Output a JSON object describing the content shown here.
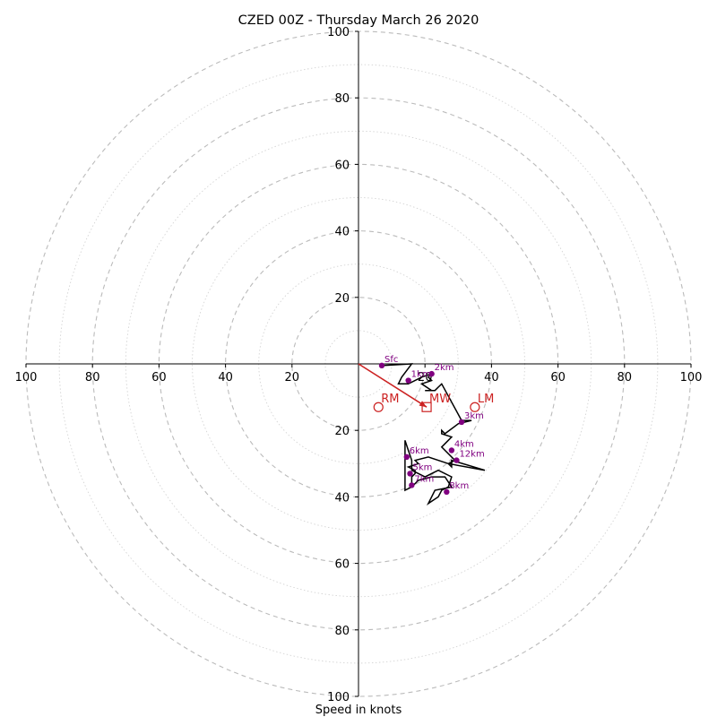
{
  "chart_data": {
    "type": "hodograph",
    "title": "CZED 00Z - Thursday March 26 2020",
    "xlabel": "Speed in knots",
    "ylabel": "",
    "range_knots": [
      -100,
      100
    ],
    "major_ring_step": 20,
    "minor_ring_step": 10,
    "grid": true,
    "tick_labels": [
      "20",
      "40",
      "60",
      "80",
      "100"
    ],
    "colors": {
      "hodograph": "#000000",
      "markers": "#800080",
      "storm_motion": "#cc2222",
      "grid": "#bbbbbb",
      "axes": "#000000"
    },
    "hodograph": {
      "u": [
        7,
        16,
        13,
        12,
        15,
        19,
        22,
        21,
        22,
        19,
        22,
        20,
        23,
        24,
        25,
        31,
        34,
        30,
        26,
        25,
        25,
        28,
        27,
        25,
        29,
        27,
        28,
        28,
        38,
        27,
        21,
        17,
        18,
        15,
        17,
        17,
        16,
        16,
        16,
        14,
        14,
        14,
        15,
        16,
        16,
        20,
        24,
        28,
        27,
        25,
        24,
        21,
        23,
        28,
        26,
        22,
        18,
        16
      ],
      "v": [
        -0.5,
        0,
        -4,
        -6,
        -6,
        -4,
        -3,
        -4,
        -5,
        -6,
        -8,
        -8,
        -8,
        -7,
        -6,
        -17,
        -17,
        -18,
        -21,
        -20,
        -21,
        -22,
        -23,
        -25,
        -29,
        -30,
        -31,
        -29,
        -32,
        -30,
        -28,
        -29,
        -30,
        -31,
        -32,
        -33,
        -34,
        -35,
        -37,
        -38,
        -33,
        -23,
        -26,
        -29,
        -32,
        -34,
        -32,
        -34,
        -37,
        -38,
        -40,
        -42,
        -38,
        -37,
        -34,
        -34,
        -35,
        -37
      ]
    },
    "height_markers": [
      {
        "label": "Sfc",
        "u": 7,
        "v": -0.5
      },
      {
        "label": "1km",
        "u": 15,
        "v": -5
      },
      {
        "label": "2km",
        "u": 22,
        "v": -3
      },
      {
        "label": "3km",
        "u": 31,
        "v": -17.5
      },
      {
        "label": "4km",
        "u": 28,
        "v": -26
      },
      {
        "label": "5km",
        "u": 15.5,
        "v": -33
      },
      {
        "label": "6km",
        "u": 14.5,
        "v": -28
      },
      {
        "label": "7km",
        "u": 16,
        "v": -36.5
      },
      {
        "label": "8km",
        "u": 26.5,
        "v": -38.5
      },
      {
        "label": "12km",
        "u": 29.5,
        "v": -29
      }
    ],
    "storm_motion": [
      {
        "label": "RM",
        "u": 6,
        "v": -13,
        "marker": "circle"
      },
      {
        "label": "LM",
        "u": 35,
        "v": -13,
        "marker": "circle"
      },
      {
        "label": "MW",
        "u": 20.5,
        "v": -13,
        "marker": "square"
      }
    ],
    "storm_motion_vector": {
      "u": 20.5,
      "v": -13
    }
  }
}
